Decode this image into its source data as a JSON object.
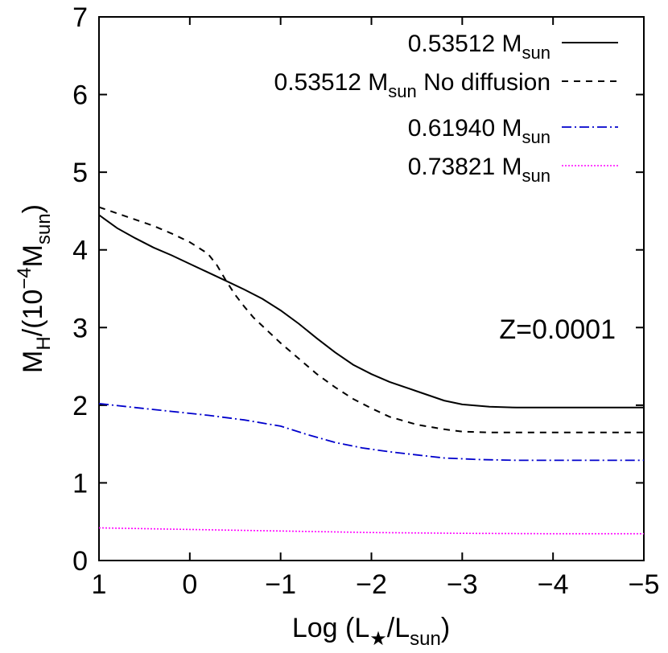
{
  "chart_data": {
    "type": "line",
    "xlabel": {
      "main": "Log (L",
      "sub1": "★",
      "mid": "/L",
      "sub2": "sun",
      "end": ")"
    },
    "ylabel": {
      "m": "M",
      "sub": "H",
      "mid": "/(10",
      "sup": "−4",
      "m2": "M",
      "sub2": "sun",
      "end": ")"
    },
    "x_reversed": true,
    "xlim": [
      1,
      -5
    ],
    "ylim": [
      0,
      7
    ],
    "xticks": [
      1,
      0,
      -1,
      -2,
      -3,
      -4,
      -5
    ],
    "xtick_labels": [
      "1",
      "0",
      "−1",
      "−2",
      "−3",
      "−4",
      "−5"
    ],
    "yticks": [
      0,
      1,
      2,
      3,
      4,
      5,
      6,
      7
    ],
    "ytick_labels": [
      "0",
      "1",
      "2",
      "3",
      "4",
      "5",
      "6",
      "7"
    ],
    "grid": false,
    "legend_position": "top-right",
    "annotation": "Z=0.0001",
    "series": [
      {
        "name": "0.53512 M_sun",
        "legend": {
          "pre": "0.53512 M",
          "sub": "sun",
          "post": ""
        },
        "color": "#000000",
        "dash": "solid",
        "x": [
          1.0,
          0.8,
          0.6,
          0.4,
          0.2,
          0.0,
          -0.2,
          -0.4,
          -0.6,
          -0.8,
          -1.0,
          -1.2,
          -1.4,
          -1.6,
          -1.8,
          -2.0,
          -2.2,
          -2.5,
          -2.8,
          -3.0,
          -3.3,
          -3.6,
          -4.0,
          -4.5,
          -5.0
        ],
        "y": [
          4.45,
          4.28,
          4.15,
          4.03,
          3.93,
          3.82,
          3.71,
          3.6,
          3.49,
          3.37,
          3.22,
          3.05,
          2.86,
          2.68,
          2.52,
          2.4,
          2.3,
          2.18,
          2.06,
          2.01,
          1.98,
          1.97,
          1.97,
          1.97,
          1.97
        ]
      },
      {
        "name": "0.53512 M_sun No diffusion",
        "legend": {
          "pre": "0.53512 M",
          "sub": "sun",
          "post": " No diffusion"
        },
        "color": "#000000",
        "dash": "dashed",
        "x": [
          1.0,
          0.8,
          0.6,
          0.4,
          0.2,
          0.0,
          -0.2,
          -0.3,
          -0.4,
          -0.5,
          -0.6,
          -0.7,
          -0.8,
          -1.0,
          -1.2,
          -1.4,
          -1.6,
          -1.8,
          -2.0,
          -2.2,
          -2.5,
          -2.8,
          -3.0,
          -3.3,
          -3.6,
          -4.0,
          -4.5,
          -5.0
        ],
        "y": [
          4.55,
          4.47,
          4.39,
          4.31,
          4.21,
          4.1,
          3.95,
          3.8,
          3.6,
          3.42,
          3.27,
          3.13,
          3.02,
          2.8,
          2.6,
          2.4,
          2.23,
          2.08,
          1.96,
          1.85,
          1.75,
          1.69,
          1.66,
          1.65,
          1.65,
          1.65,
          1.65,
          1.65
        ]
      },
      {
        "name": "0.61940 M_sun",
        "legend": {
          "pre": "0.61940 M",
          "sub": "sun",
          "post": ""
        },
        "color": "#0000cc",
        "dash": "dashdot",
        "x": [
          1.0,
          0.6,
          0.2,
          -0.2,
          -0.6,
          -1.0,
          -1.3,
          -1.6,
          -1.9,
          -2.2,
          -2.5,
          -2.8,
          -3.2,
          -3.6,
          -4.0,
          -4.5,
          -5.0
        ],
        "y": [
          2.02,
          1.97,
          1.92,
          1.87,
          1.81,
          1.73,
          1.62,
          1.52,
          1.45,
          1.4,
          1.36,
          1.32,
          1.3,
          1.29,
          1.29,
          1.29,
          1.29
        ]
      },
      {
        "name": "0.73821 M_sun",
        "legend": {
          "pre": "0.73821 M",
          "sub": "sun",
          "post": ""
        },
        "color": "#ff00ff",
        "dash": "dotted",
        "x": [
          1.0,
          0.0,
          -1.0,
          -2.0,
          -3.0,
          -4.0,
          -5.0
        ],
        "y": [
          0.42,
          0.4,
          0.38,
          0.36,
          0.35,
          0.345,
          0.345
        ]
      }
    ]
  }
}
